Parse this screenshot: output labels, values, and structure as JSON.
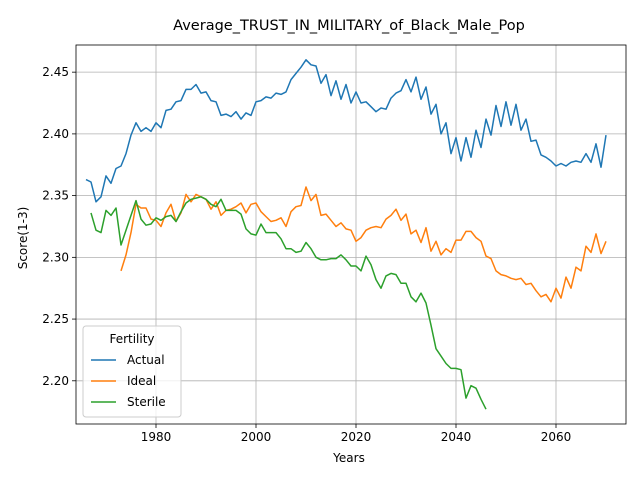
{
  "chart_data": {
    "type": "line",
    "title": "Average_TRUST_IN_MILITARY_of_Black_Male_Pop",
    "xlabel": "Years",
    "ylabel": "Score(1-3)",
    "xlim": [
      1964,
      2074
    ],
    "ylim": [
      2.165,
      2.472
    ],
    "xticks": [
      1980,
      2000,
      2020,
      2040,
      2060
    ],
    "yticks": [
      2.2,
      2.25,
      2.3,
      2.35,
      2.4,
      2.45
    ],
    "xtick_labels": [
      "1980",
      "2000",
      "2020",
      "2040",
      "2060"
    ],
    "ytick_labels": [
      "2.20",
      "2.25",
      "2.30",
      "2.35",
      "2.40",
      "2.45"
    ],
    "grid": true,
    "legend": {
      "title": "Fertility",
      "placement": "lower-left"
    },
    "series": [
      {
        "name": "Actual",
        "color": "#1f77b4",
        "x": [
          1966,
          1967,
          1968,
          1969,
          1970,
          1971,
          1972,
          1973,
          1974,
          1975,
          1976,
          1977,
          1978,
          1979,
          1980,
          1981,
          1982,
          1983,
          1984,
          1985,
          1986,
          1987,
          1988,
          1989,
          1990,
          1991,
          1992,
          1993,
          1994,
          1995,
          1996,
          1997,
          1998,
          1999,
          2000,
          2001,
          2002,
          2003,
          2004,
          2005,
          2006,
          2007,
          2008,
          2009,
          2010,
          2011,
          2012,
          2013,
          2014,
          2015,
          2016,
          2017,
          2018,
          2019,
          2020,
          2021,
          2022,
          2023,
          2024,
          2025,
          2026,
          2027,
          2028,
          2029,
          2030,
          2031,
          2032,
          2033,
          2034,
          2035,
          2036,
          2037,
          2038,
          2039,
          2040,
          2041,
          2042,
          2043,
          2044,
          2045,
          2046,
          2047,
          2048,
          2049,
          2050,
          2051,
          2052,
          2053,
          2054,
          2055,
          2056,
          2057,
          2058,
          2059,
          2060,
          2061,
          2062,
          2063,
          2064,
          2065,
          2066,
          2067,
          2068,
          2069,
          2070
        ],
        "values": [
          2.363,
          2.361,
          2.345,
          2.349,
          2.366,
          2.36,
          2.372,
          2.374,
          2.384,
          2.399,
          2.409,
          2.402,
          2.405,
          2.402,
          2.409,
          2.405,
          2.419,
          2.42,
          2.426,
          2.427,
          2.436,
          2.436,
          2.44,
          2.433,
          2.434,
          2.427,
          2.426,
          2.415,
          2.416,
          2.414,
          2.418,
          2.412,
          2.417,
          2.415,
          2.426,
          2.427,
          2.43,
          2.429,
          2.433,
          2.432,
          2.434,
          2.444,
          2.449,
          2.454,
          2.46,
          2.456,
          2.455,
          2.441,
          2.448,
          2.431,
          2.443,
          2.428,
          2.44,
          2.425,
          2.434,
          2.425,
          2.426,
          2.422,
          2.418,
          2.421,
          2.42,
          2.429,
          2.433,
          2.435,
          2.444,
          2.434,
          2.446,
          2.428,
          2.438,
          2.416,
          2.424,
          2.4,
          2.409,
          2.384,
          2.397,
          2.378,
          2.397,
          2.381,
          2.403,
          2.389,
          2.412,
          2.399,
          2.423,
          2.406,
          2.426,
          2.407,
          2.424,
          2.403,
          2.412,
          2.394,
          2.395,
          2.383,
          2.381,
          2.378,
          2.374,
          2.376,
          2.374,
          2.377,
          2.378,
          2.377,
          2.384,
          2.377,
          2.392,
          2.373,
          2.399
        ]
      },
      {
        "name": "Ideal",
        "color": "#ff7f0e",
        "x": [
          1973,
          1974,
          1975,
          1976,
          1977,
          1978,
          1979,
          1980,
          1981,
          1982,
          1983,
          1984,
          1985,
          1986,
          1987,
          1988,
          1989,
          1990,
          1991,
          1992,
          1993,
          1994,
          1995,
          1996,
          1997,
          1998,
          1999,
          2000,
          2001,
          2002,
          2003,
          2004,
          2005,
          2006,
          2007,
          2008,
          2009,
          2010,
          2011,
          2012,
          2013,
          2014,
          2015,
          2016,
          2017,
          2018,
          2019,
          2020,
          2021,
          2022,
          2023,
          2024,
          2025,
          2026,
          2027,
          2028,
          2029,
          2030,
          2031,
          2032,
          2033,
          2034,
          2035,
          2036,
          2037,
          2038,
          2039,
          2040,
          2041,
          2042,
          2043,
          2044,
          2045,
          2046,
          2047,
          2048,
          2049,
          2050,
          2051,
          2052,
          2053,
          2054,
          2055,
          2056,
          2057,
          2058,
          2059,
          2060,
          2061,
          2062,
          2063,
          2064,
          2065,
          2066,
          2067,
          2068,
          2069,
          2070
        ],
        "values": [
          2.289,
          2.302,
          2.32,
          2.343,
          2.34,
          2.34,
          2.331,
          2.33,
          2.325,
          2.336,
          2.343,
          2.329,
          2.336,
          2.351,
          2.345,
          2.351,
          2.349,
          2.347,
          2.339,
          2.345,
          2.334,
          2.338,
          2.339,
          2.341,
          2.344,
          2.336,
          2.343,
          2.344,
          2.337,
          2.333,
          2.329,
          2.33,
          2.332,
          2.325,
          2.337,
          2.341,
          2.342,
          2.357,
          2.346,
          2.351,
          2.334,
          2.335,
          2.33,
          2.325,
          2.328,
          2.323,
          2.322,
          2.313,
          2.316,
          2.322,
          2.324,
          2.325,
          2.324,
          2.331,
          2.334,
          2.339,
          2.33,
          2.335,
          2.319,
          2.322,
          2.312,
          2.324,
          2.305,
          2.313,
          2.302,
          2.307,
          2.304,
          2.314,
          2.314,
          2.321,
          2.321,
          2.316,
          2.313,
          2.301,
          2.299,
          2.289,
          2.286,
          2.285,
          2.283,
          2.282,
          2.283,
          2.278,
          2.279,
          2.273,
          2.268,
          2.27,
          2.264,
          2.275,
          2.267,
          2.284,
          2.275,
          2.292,
          2.289,
          2.309,
          2.304,
          2.319,
          2.303,
          2.313
        ]
      },
      {
        "name": "Sterile",
        "color": "#2ca02c",
        "x": [
          1967,
          1968,
          1969,
          1970,
          1971,
          1972,
          1973,
          1974,
          1975,
          1976,
          1977,
          1978,
          1979,
          1980,
          1981,
          1982,
          1983,
          1984,
          1985,
          1986,
          1987,
          1988,
          1989,
          1990,
          1991,
          1992,
          1993,
          1994,
          1995,
          1996,
          1997,
          1998,
          1999,
          2000,
          2001,
          2002,
          2003,
          2004,
          2005,
          2006,
          2007,
          2008,
          2009,
          2010,
          2011,
          2012,
          2013,
          2014,
          2015,
          2016,
          2017,
          2018,
          2019,
          2020,
          2021,
          2022,
          2023,
          2024,
          2025,
          2026,
          2027,
          2028,
          2029,
          2030,
          2031,
          2032,
          2033,
          2034,
          2035,
          2036,
          2037,
          2038,
          2039,
          2040,
          2041,
          2042,
          2043,
          2044,
          2045,
          2046
        ],
        "values": [
          2.336,
          2.322,
          2.32,
          2.338,
          2.334,
          2.34,
          2.31,
          2.322,
          2.334,
          2.346,
          2.331,
          2.326,
          2.327,
          2.332,
          2.33,
          2.333,
          2.334,
          2.329,
          2.337,
          2.344,
          2.347,
          2.348,
          2.349,
          2.347,
          2.343,
          2.341,
          2.347,
          2.338,
          2.338,
          2.338,
          2.335,
          2.323,
          2.319,
          2.318,
          2.327,
          2.32,
          2.32,
          2.32,
          2.315,
          2.307,
          2.307,
          2.304,
          2.305,
          2.312,
          2.307,
          2.3,
          2.298,
          2.298,
          2.299,
          2.299,
          2.302,
          2.298,
          2.293,
          2.293,
          2.289,
          2.301,
          2.294,
          2.282,
          2.275,
          2.285,
          2.287,
          2.286,
          2.279,
          2.279,
          2.268,
          2.264,
          2.271,
          2.263,
          2.245,
          2.226,
          2.22,
          2.214,
          2.21,
          2.21,
          2.209,
          2.186,
          2.196,
          2.194,
          2.185,
          2.177
        ]
      }
    ]
  }
}
